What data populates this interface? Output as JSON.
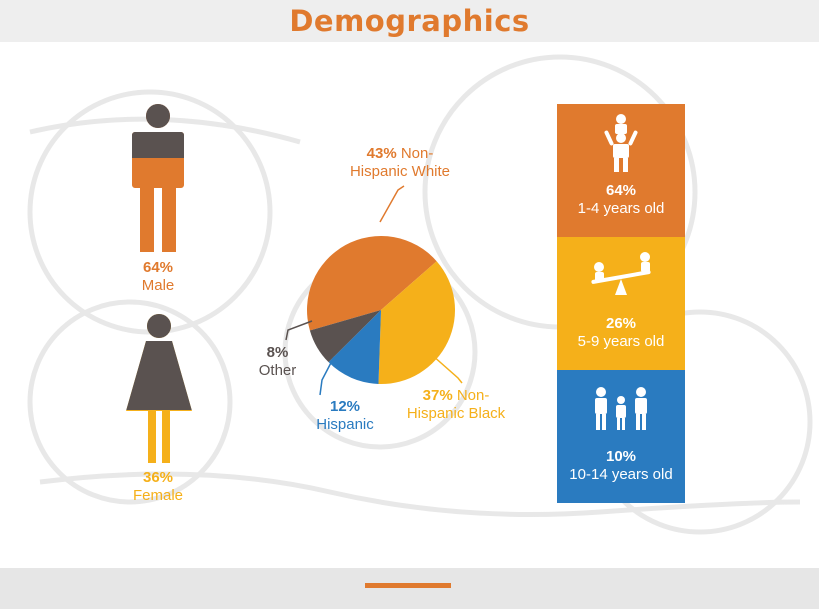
{
  "header": {
    "title": "Demographics"
  },
  "gender": {
    "male": {
      "percent": "64%",
      "label": "Male",
      "value": 64,
      "color": "#e07a2e"
    },
    "female": {
      "percent": "36%",
      "label": "Female",
      "value": 36,
      "color": "#f5b01a"
    },
    "figure_gray": "#5a5250"
  },
  "pie": {
    "white": {
      "percent": "43%",
      "line1": "Non-",
      "line2": "Hispanic White"
    },
    "black": {
      "percent": "37%",
      "line1": "Non-",
      "line2": "Hispanic Black"
    },
    "hispanic": {
      "percent": "12%",
      "label": "Hispanic"
    },
    "other": {
      "percent": "8%",
      "label": "Other"
    }
  },
  "age_groups": [
    {
      "percent": "64%",
      "label": "1-4 years old",
      "color": "#e07a2e",
      "icon": "parent-child-icon"
    },
    {
      "percent": "26%",
      "label": "5-9 years old",
      "color": "#f5b01a",
      "icon": "seesaw-icon"
    },
    {
      "percent": "10%",
      "label": "10-14 years old",
      "color": "#2a7bc0",
      "icon": "family-icon"
    }
  ],
  "chart_data": [
    {
      "type": "bar",
      "categories": [
        "Male",
        "Female"
      ],
      "values": [
        64,
        36
      ],
      "colors": [
        "#e07a2e",
        "#f5b01a"
      ]
    },
    {
      "type": "pie",
      "categories": [
        "Non-Hispanic White",
        "Non-Hispanic Black",
        "Hispanic",
        "Other"
      ],
      "values": [
        43,
        37,
        12,
        8
      ],
      "colors": [
        "#e07a2e",
        "#f5b01a",
        "#2a7bc0",
        "#5a5250"
      ]
    },
    {
      "type": "table",
      "categories": [
        "1-4 years old",
        "5-9 years old",
        "10-14 years old"
      ],
      "values": [
        64,
        26,
        10
      ],
      "colors": [
        "#e07a2e",
        "#f5b01a",
        "#2a7bc0"
      ]
    }
  ]
}
